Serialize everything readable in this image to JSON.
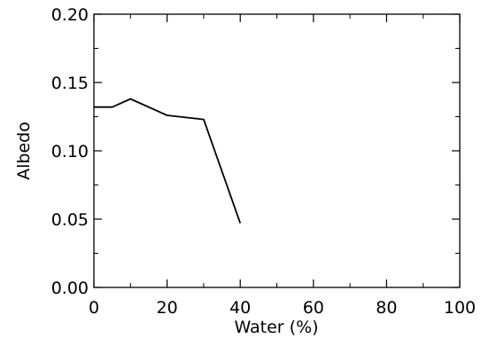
{
  "chart_data": {
    "type": "line",
    "title": "",
    "xlabel": "Water (%)",
    "ylabel": "Albedo",
    "xlim": [
      0,
      100
    ],
    "ylim": [
      0,
      0.2
    ],
    "x_ticks": [
      0,
      20,
      40,
      60,
      80,
      100
    ],
    "x_tick_labels": [
      "0",
      "20",
      "40",
      "60",
      "80",
      "100"
    ],
    "y_ticks": [
      0,
      0.05,
      0.1,
      0.15,
      0.2
    ],
    "y_tick_labels": [
      "0.00",
      "0.05",
      "0.10",
      "0.15",
      "0.20"
    ],
    "grid": false,
    "legend": "none",
    "series": [
      {
        "color": "#000000",
        "x": [
          0,
          5,
          10,
          20,
          30,
          40
        ],
        "y": [
          0.132,
          0.132,
          0.138,
          0.126,
          0.123,
          0.047
        ]
      }
    ]
  }
}
